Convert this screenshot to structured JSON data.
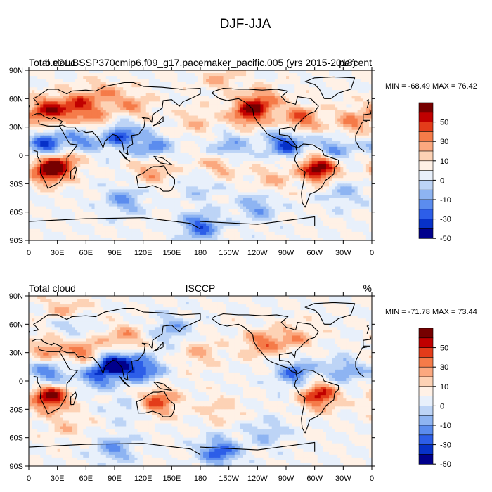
{
  "figure": {
    "title": "DJF-JJA"
  },
  "chart_data": [
    {
      "type": "heatmap",
      "title_left": "Total cloud",
      "title_center": "b.e21.BSSP370cmip6.f09_g17.pacemaker_pacific.005 (yrs 2015-2018)",
      "title_right": "percent",
      "min_max_label": "MIN = -68.49 MAX =  76.42",
      "min": -68.49,
      "max": 76.42,
      "x_ticks": [
        "0",
        "30E",
        "60E",
        "90E",
        "120E",
        "150E",
        "180",
        "150W",
        "120W",
        "90W",
        "60W",
        "30W",
        "0"
      ],
      "y_ticks": [
        "90N",
        "60N",
        "30N",
        "0",
        "30S",
        "60S",
        "90S"
      ],
      "colorbar_labels": [
        "50",
        "30",
        "10",
        "0",
        "-10",
        "-30",
        "-50"
      ],
      "anomalies": [
        {
          "lon": 20,
          "lat": 47,
          "value": 55
        },
        {
          "lon": 52,
          "lat": 52,
          "value": 45
        },
        {
          "lon": 70,
          "lat": 30,
          "value": 40
        },
        {
          "lon": 80,
          "lat": 65,
          "value": 25
        },
        {
          "lon": 110,
          "lat": 52,
          "value": 25
        },
        {
          "lon": 230,
          "lat": 45,
          "value": 50
        },
        {
          "lon": 245,
          "lat": 57,
          "value": 35
        },
        {
          "lon": 285,
          "lat": 38,
          "value": 40
        },
        {
          "lon": 340,
          "lat": 35,
          "value": 30
        },
        {
          "lon": 22,
          "lat": -15,
          "value": 68
        },
        {
          "lon": 35,
          "lat": -5,
          "value": 30
        },
        {
          "lon": 305,
          "lat": -13,
          "value": 72
        },
        {
          "lon": 130,
          "lat": -15,
          "value": 30
        },
        {
          "lon": 200,
          "lat": -10,
          "value": 25
        },
        {
          "lon": 255,
          "lat": -25,
          "value": 20
        },
        {
          "lon": 175,
          "lat": 35,
          "value": 18
        },
        {
          "lon": 200,
          "lat": 82,
          "value": 20
        },
        {
          "lon": 20,
          "lat": 10,
          "value": -55
        },
        {
          "lon": 60,
          "lat": 20,
          "value": -45
        },
        {
          "lon": 95,
          "lat": 22,
          "value": -50
        },
        {
          "lon": 130,
          "lat": 8,
          "value": -35
        },
        {
          "lon": 270,
          "lat": 12,
          "value": -50
        },
        {
          "lon": 210,
          "lat": 8,
          "value": -30
        },
        {
          "lon": 320,
          "lat": 5,
          "value": -35
        },
        {
          "lon": 100,
          "lat": -48,
          "value": -30
        },
        {
          "lon": 240,
          "lat": -55,
          "value": -28
        },
        {
          "lon": 180,
          "lat": -35,
          "value": -15
        },
        {
          "lon": 180,
          "lat": -75,
          "value": -45
        },
        {
          "lon": 330,
          "lat": -40,
          "value": -20
        }
      ]
    },
    {
      "type": "heatmap",
      "title_left": "Total cloud",
      "title_center": "ISCCP",
      "title_right": "%",
      "min_max_label": "MIN = -71.78 MAX =  73.44",
      "min": -71.78,
      "max": 73.44,
      "x_ticks": [
        "0",
        "30E",
        "60E",
        "90E",
        "120E",
        "150E",
        "180",
        "150W",
        "120W",
        "90W",
        "60W",
        "30W",
        "0"
      ],
      "y_ticks": [
        "90N",
        "60N",
        "30N",
        "0",
        "30S",
        "60S",
        "90S"
      ],
      "colorbar_labels": [
        "50",
        "30",
        "10",
        "0",
        "-10",
        "-30",
        "-50"
      ],
      "anomalies": [
        {
          "lon": 22,
          "lat": -17,
          "value": 65
        },
        {
          "lon": 305,
          "lat": -15,
          "value": 55
        },
        {
          "lon": 135,
          "lat": -22,
          "value": 45
        },
        {
          "lon": 60,
          "lat": 30,
          "value": 35
        },
        {
          "lon": 100,
          "lat": 45,
          "value": 28
        },
        {
          "lon": 245,
          "lat": 40,
          "value": 35
        },
        {
          "lon": 280,
          "lat": 45,
          "value": 25
        },
        {
          "lon": 180,
          "lat": 30,
          "value": 20
        },
        {
          "lon": 20,
          "lat": 32,
          "value": 30
        },
        {
          "lon": 40,
          "lat": 75,
          "value": 25
        },
        {
          "lon": 200,
          "lat": -30,
          "value": 15
        },
        {
          "lon": 40,
          "lat": -48,
          "value": 15
        },
        {
          "lon": 90,
          "lat": 18,
          "value": -65
        },
        {
          "lon": 120,
          "lat": 12,
          "value": -45
        },
        {
          "lon": 20,
          "lat": 8,
          "value": -40
        },
        {
          "lon": 70,
          "lat": 5,
          "value": -35
        },
        {
          "lon": 280,
          "lat": 8,
          "value": -40
        },
        {
          "lon": 150,
          "lat": 55,
          "value": -25
        },
        {
          "lon": 45,
          "lat": 60,
          "value": -20
        },
        {
          "lon": 330,
          "lat": 10,
          "value": -30
        },
        {
          "lon": 200,
          "lat": -75,
          "value": -48
        },
        {
          "lon": 90,
          "lat": -72,
          "value": -30
        },
        {
          "lon": 250,
          "lat": -55,
          "value": -20
        },
        {
          "lon": 105,
          "lat": -30,
          "value": -15
        }
      ]
    }
  ]
}
